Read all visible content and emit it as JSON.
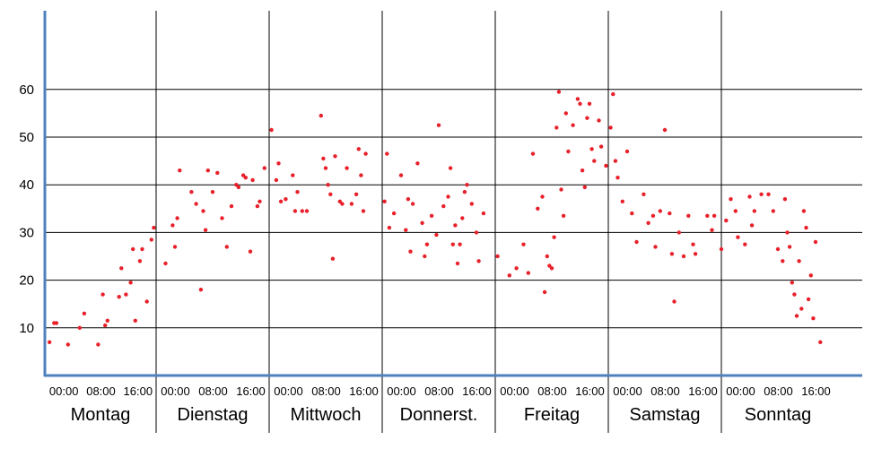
{
  "chart_data": {
    "type": "scatter",
    "title": "",
    "xlabel": "",
    "ylabel": "",
    "ylim": [
      0,
      77
    ],
    "yticks": [
      10,
      20,
      30,
      40,
      50,
      60
    ],
    "grid": true,
    "point_color": "#e8202a",
    "axis_color": "#4f81bd",
    "days": [
      "Montag",
      "Dienstag",
      "Mittwoch",
      "Donnerst.",
      "Freitag",
      "Samstag",
      "Sonntag"
    ],
    "hour_tick_labels": [
      "00:00",
      "08:00",
      "16:00"
    ],
    "series": [
      {
        "x_unit": "hours since Monday 00:00",
        "points": [
          [
            1,
            7
          ],
          [
            2,
            11
          ],
          [
            2.5,
            11
          ],
          [
            5,
            6.5
          ],
          [
            7.5,
            10
          ],
          [
            8.5,
            13
          ],
          [
            11.5,
            6.5
          ],
          [
            12.5,
            17
          ],
          [
            13,
            10.5
          ],
          [
            13.5,
            11.5
          ],
          [
            16,
            16.5
          ],
          [
            16.5,
            22.5
          ],
          [
            17.5,
            17
          ],
          [
            18.5,
            19.5
          ],
          [
            19,
            26.5
          ],
          [
            19.5,
            11.5
          ],
          [
            20.5,
            24
          ],
          [
            21,
            26.5
          ],
          [
            22,
            15.5
          ],
          [
            23,
            28.5
          ],
          [
            23.5,
            31
          ],
          [
            26,
            23.5
          ],
          [
            27.5,
            31.5
          ],
          [
            28,
            27
          ],
          [
            28.5,
            33
          ],
          [
            29,
            43
          ],
          [
            31.5,
            38.5
          ],
          [
            32.5,
            36
          ],
          [
            33.5,
            18
          ],
          [
            34,
            34.5
          ],
          [
            34.5,
            30.5
          ],
          [
            35,
            43
          ],
          [
            36,
            38.5
          ],
          [
            37,
            42.5
          ],
          [
            38,
            33
          ],
          [
            39,
            27
          ],
          [
            40,
            35.5
          ],
          [
            41,
            40
          ],
          [
            41.5,
            39.5
          ],
          [
            42.5,
            42
          ],
          [
            43,
            41.5
          ],
          [
            44,
            26
          ],
          [
            44.5,
            41
          ],
          [
            45.5,
            35.5
          ],
          [
            46,
            36.5
          ],
          [
            47,
            43.5
          ],
          [
            48.5,
            51.5
          ],
          [
            49.5,
            41
          ],
          [
            50,
            44.5
          ],
          [
            50.5,
            36.5
          ],
          [
            51.5,
            37
          ],
          [
            53,
            42
          ],
          [
            53.5,
            34.5
          ],
          [
            54,
            38.5
          ],
          [
            55,
            34.5
          ],
          [
            56,
            34.5
          ],
          [
            59,
            54.5
          ],
          [
            59.5,
            45.5
          ],
          [
            60,
            43.5
          ],
          [
            60.5,
            40
          ],
          [
            61,
            38
          ],
          [
            61.5,
            24.5
          ],
          [
            62,
            46
          ],
          [
            63,
            36.5
          ],
          [
            63.5,
            36
          ],
          [
            64.5,
            43.5
          ],
          [
            65.5,
            36
          ],
          [
            66.5,
            38
          ],
          [
            67,
            47.5
          ],
          [
            67.5,
            42
          ],
          [
            68,
            34.5
          ],
          [
            68.5,
            46.5
          ],
          [
            72.5,
            36.5
          ],
          [
            73,
            46.5
          ],
          [
            73.5,
            31
          ],
          [
            74.5,
            34
          ],
          [
            76,
            42
          ],
          [
            77,
            30.5
          ],
          [
            77.5,
            37
          ],
          [
            78,
            26
          ],
          [
            78.5,
            36
          ],
          [
            79.5,
            44.5
          ],
          [
            80.5,
            32
          ],
          [
            81,
            25
          ],
          [
            81.5,
            27.5
          ],
          [
            82.5,
            33.5
          ],
          [
            83.5,
            29.5
          ],
          [
            84,
            52.5
          ],
          [
            85,
            35.5
          ],
          [
            86,
            37.5
          ],
          [
            86.5,
            43.5
          ],
          [
            87,
            27.5
          ],
          [
            87.5,
            31.5
          ],
          [
            88,
            23.5
          ],
          [
            88.5,
            27.5
          ],
          [
            89,
            33
          ],
          [
            89.5,
            38.5
          ],
          [
            90,
            40
          ],
          [
            91,
            36
          ],
          [
            92,
            30
          ],
          [
            92.5,
            24
          ],
          [
            93.5,
            34
          ],
          [
            96.5,
            25
          ],
          [
            99,
            21
          ],
          [
            100.5,
            22.5
          ],
          [
            102,
            27.5
          ],
          [
            103,
            21.5
          ],
          [
            104,
            46.5
          ],
          [
            105,
            35
          ],
          [
            106,
            37.5
          ],
          [
            106.5,
            17.5
          ],
          [
            107,
            25
          ],
          [
            107.5,
            23
          ],
          [
            108,
            22.5
          ],
          [
            108.5,
            29
          ],
          [
            109,
            52
          ],
          [
            109.5,
            59.5
          ],
          [
            110,
            39
          ],
          [
            110.5,
            33.5
          ],
          [
            111,
            55
          ],
          [
            111.5,
            47
          ],
          [
            112.5,
            52.5
          ],
          [
            113.5,
            58
          ],
          [
            114,
            57
          ],
          [
            114.5,
            43
          ],
          [
            115,
            39.5
          ],
          [
            115.5,
            54
          ],
          [
            116,
            57
          ],
          [
            116.5,
            47.5
          ],
          [
            117,
            45
          ],
          [
            118,
            53.5
          ],
          [
            118.5,
            48
          ],
          [
            119.5,
            44
          ],
          [
            120.5,
            52
          ],
          [
            121,
            59
          ],
          [
            121.5,
            45
          ],
          [
            122,
            41.5
          ],
          [
            123,
            36.5
          ],
          [
            124,
            47
          ],
          [
            125,
            34
          ],
          [
            126,
            28
          ],
          [
            127.5,
            38
          ],
          [
            128.5,
            32
          ],
          [
            129.5,
            33.5
          ],
          [
            130,
            27
          ],
          [
            131,
            34.5
          ],
          [
            132,
            51.5
          ],
          [
            133,
            34
          ],
          [
            133.5,
            25.5
          ],
          [
            134,
            15.5
          ],
          [
            135,
            30
          ],
          [
            136,
            25
          ],
          [
            137,
            33.5
          ],
          [
            138,
            27.5
          ],
          [
            138.5,
            25.5
          ],
          [
            141,
            33.5
          ],
          [
            142,
            30.5
          ],
          [
            142.5,
            33.5
          ],
          [
            144,
            26.5
          ],
          [
            145,
            32.5
          ],
          [
            146,
            37
          ],
          [
            147,
            34.5
          ],
          [
            147.5,
            29
          ],
          [
            149,
            27.5
          ],
          [
            150,
            37.5
          ],
          [
            150.5,
            31.5
          ],
          [
            151,
            34.5
          ],
          [
            152.5,
            38
          ],
          [
            154,
            38
          ],
          [
            155,
            34.5
          ],
          [
            156,
            26.5
          ],
          [
            157,
            24
          ],
          [
            157.5,
            37
          ],
          [
            158,
            30
          ],
          [
            158.5,
            27
          ],
          [
            159,
            19.5
          ],
          [
            159.5,
            17
          ],
          [
            160,
            12.5
          ],
          [
            160.5,
            24
          ],
          [
            161,
            14
          ],
          [
            161.5,
            34.5
          ],
          [
            162,
            31
          ],
          [
            162.5,
            16
          ],
          [
            163,
            21
          ],
          [
            163.5,
            12
          ],
          [
            164,
            28
          ],
          [
            165,
            7
          ]
        ]
      }
    ]
  }
}
